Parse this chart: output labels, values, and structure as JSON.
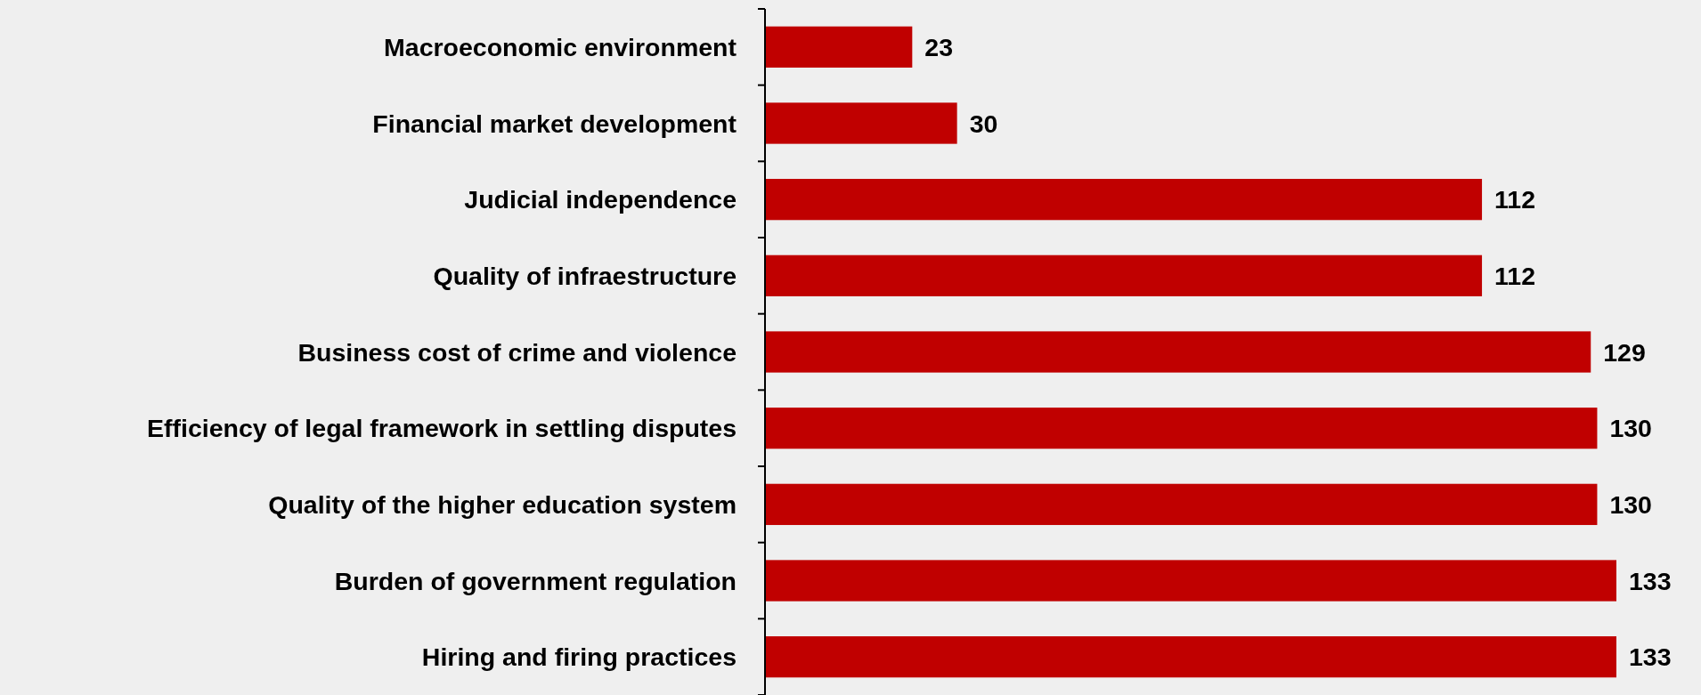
{
  "chart_data": {
    "type": "bar",
    "orientation": "horizontal",
    "categories": [
      "Macroeconomic environment",
      "Financial market development",
      "Judicial independence",
      "Quality of infraestructure",
      "Business cost of crime and violence",
      "Efficiency of legal framework in settling disputes",
      "Quality of the higher education system",
      "Burden of government regulation",
      "Hiring and firing practices"
    ],
    "values": [
      23,
      30,
      112,
      112,
      129,
      130,
      130,
      133,
      133
    ],
    "color": "#c00000",
    "data_labels": true
  }
}
